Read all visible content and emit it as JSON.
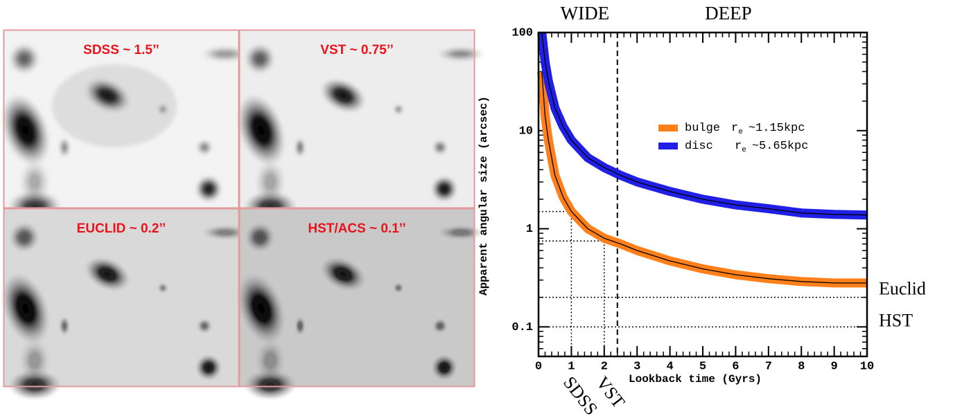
{
  "panels": [
    {
      "label": "SDSS ~ 1.5’’"
    },
    {
      "label": "VST ~ 0.75’’"
    },
    {
      "label": "EUCLID ~ 0.2’’"
    },
    {
      "label": "HST/ACS ~ 0.1’’"
    }
  ],
  "chart_data": {
    "type": "line",
    "x_label": "Lookback time (Gyrs)",
    "y_label": "Apparent angular size (arcsec)",
    "x": [
      0.1,
      0.2,
      0.3,
      0.5,
      0.75,
      1,
      1.5,
      2,
      2.5,
      3,
      4,
      5,
      6,
      7,
      8,
      9,
      10
    ],
    "radius_symbol": "r",
    "radius_subscript": "e",
    "series": [
      {
        "name": "bulge",
        "radius": "~1.15kpc",
        "color": "#ff7f1a",
        "values": [
          40,
          14,
          8,
          3.5,
          2.1,
          1.5,
          1.0,
          0.8,
          0.7,
          0.6,
          0.47,
          0.39,
          0.34,
          0.31,
          0.29,
          0.28,
          0.28
        ]
      },
      {
        "name": "disc",
        "radius": "~5.65kpc",
        "color": "#1f1fe6",
        "values": [
          100,
          50,
          32,
          17,
          11,
          8,
          5.3,
          4.2,
          3.5,
          3.0,
          2.4,
          2.0,
          1.75,
          1.6,
          1.45,
          1.4,
          1.38
        ]
      }
    ],
    "xlim": [
      0,
      10
    ],
    "xticks": [
      0,
      1,
      2,
      3,
      4,
      5,
      6,
      7,
      8,
      9,
      10
    ],
    "ylim": [
      0.05,
      100
    ],
    "yticks": [
      0.1,
      1,
      10,
      100
    ],
    "log_y": true,
    "surveys": [
      {
        "name": "SDSS",
        "x": 1,
        "y": 1.5
      },
      {
        "name": "VST",
        "x": 2,
        "y": 0.75
      }
    ],
    "resolution_lines": [
      {
        "name": "Euclid",
        "y": 0.2
      },
      {
        "name": "HST",
        "y": 0.1
      }
    ],
    "split": {
      "x": 2.4,
      "left": "WIDE",
      "right": "DEEP"
    }
  }
}
